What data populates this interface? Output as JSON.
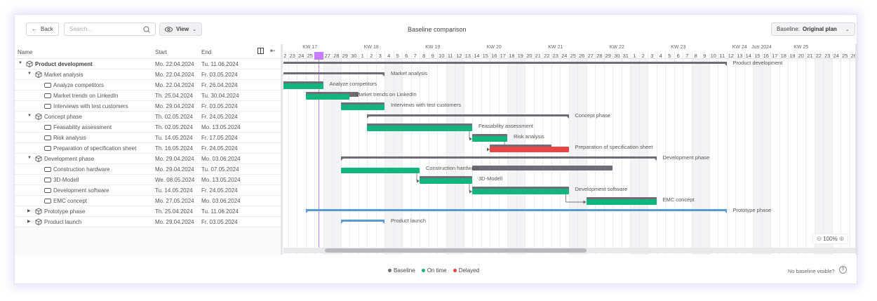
{
  "toolbar": {
    "back_label": "Back",
    "search_placeholder": "Search...",
    "view_label": "View",
    "title": "Baseline comparison",
    "baseline_label": "Baseline:",
    "baseline_value": "Original plan"
  },
  "table": {
    "headers": {
      "name": "Name",
      "start": "Start",
      "end": "End"
    }
  },
  "timeline": {
    "start_date": "2024-04-22",
    "today": "2024-04-26",
    "day_count": 67,
    "weeks": [
      {
        "label": "KW 17",
        "day": 3.5
      },
      {
        "label": "KW 18",
        "day": 10.5
      },
      {
        "label": "KW 19",
        "day": 17.5
      },
      {
        "label": "KW 20",
        "day": 24.5
      },
      {
        "label": "KW 21",
        "day": 31.5
      },
      {
        "label": "KW 22",
        "day": 38.5
      },
      {
        "label": "KW 23",
        "day": 45.5
      },
      {
        "label": "KW 24",
        "day": 52.5
      },
      {
        "label": "Jun 2024",
        "day": 55
      },
      {
        "label": "KW 25",
        "day": 59.5
      },
      {
        "label": "K",
        "day": 66.2
      }
    ]
  },
  "rows": [
    {
      "name": "Product development",
      "start": "Mo. 22.04.2024",
      "end": "Tu. 11.06.2024",
      "level": 0,
      "type": "summary",
      "expanded": true,
      "color": "gray",
      "actual": [
        "2024-04-22",
        "2024-06-11"
      ]
    },
    {
      "name": "Market analysis",
      "start": "Mo. 22.04.2024",
      "end": "Fr. 03.05.2024",
      "level": 1,
      "type": "summary",
      "expanded": true,
      "color": "gray",
      "actual": [
        "2024-04-22",
        "2024-05-03"
      ]
    },
    {
      "name": "Analyze competitors",
      "start": "Mo. 22.04.2024",
      "end": "Fr. 26.04.2024",
      "level": 2,
      "type": "task",
      "status": "on_time",
      "baseline": [
        "2024-04-22",
        "2024-04-26"
      ],
      "actual": [
        "2024-04-22",
        "2024-04-26"
      ]
    },
    {
      "name": "Market trends on LinkedIn",
      "start": "Th. 25.04.2024",
      "end": "Tu. 30.04.2024",
      "level": 2,
      "type": "task",
      "status": "on_time",
      "baseline": [
        "2024-04-25",
        "2024-04-30"
      ],
      "actual": [
        "2024-04-25",
        "2024-04-29"
      ]
    },
    {
      "name": "Interviews with test customers",
      "start": "Mo. 29.04.2024",
      "end": "Fr. 03.05.2024",
      "level": 2,
      "type": "task",
      "status": "on_time",
      "baseline": [
        "2024-04-29",
        "2024-05-03"
      ],
      "actual": [
        "2024-04-29",
        "2024-05-03"
      ]
    },
    {
      "name": "Concept phase",
      "start": "Th. 02.05.2024",
      "end": "Fr. 24.05.2024",
      "level": 1,
      "type": "summary",
      "expanded": true,
      "color": "gray",
      "actual": [
        "2024-05-02",
        "2024-05-24"
      ]
    },
    {
      "name": "Feasability assessment",
      "start": "Th. 02.05.2024",
      "end": "Mo. 13.05.2024",
      "level": 2,
      "type": "task",
      "status": "on_time",
      "baseline": [
        "2024-05-02",
        "2024-05-13"
      ],
      "actual": [
        "2024-05-02",
        "2024-05-13"
      ]
    },
    {
      "name": "Risk analysis",
      "start": "Tu. 14.05.2024",
      "end": "Fr. 17.05.2024",
      "level": 2,
      "type": "task",
      "status": "on_time",
      "baseline": [
        "2024-05-14",
        "2024-05-17"
      ],
      "actual": [
        "2024-05-14",
        "2024-05-17"
      ],
      "dep_from": 6
    },
    {
      "name": "Preparation of specification sheet",
      "start": "Th. 16.05.2024",
      "end": "Fr. 24.05.2024",
      "level": 2,
      "type": "task",
      "status": "delayed",
      "baseline": [
        "2024-05-16",
        "2024-05-22"
      ],
      "actual": [
        "2024-05-16",
        "2024-05-24"
      ],
      "dep_from": 7
    },
    {
      "name": "Development phase",
      "start": "Mo. 29.04.2024",
      "end": "Mo. 03.06.2024",
      "level": 1,
      "type": "summary",
      "expanded": true,
      "color": "gray",
      "actual": [
        "2024-04-29",
        "2024-06-03"
      ]
    },
    {
      "name": "Construction hardware",
      "start": "Mo. 29.04.2024",
      "end": "Tu. 07.05.2024",
      "level": 2,
      "type": "task",
      "status": "on_time",
      "baseline": [
        "2024-05-14",
        "2024-05-29"
      ],
      "actual": [
        "2024-04-29",
        "2024-05-07"
      ]
    },
    {
      "name": "3D-Modell",
      "start": "We. 08.05.2024",
      "end": "Mo. 13.05.2024",
      "level": 2,
      "type": "task",
      "status": "on_time",
      "baseline": [
        "2024-05-08",
        "2024-05-13"
      ],
      "actual": [
        "2024-05-08",
        "2024-05-13"
      ],
      "dep_from": 10
    },
    {
      "name": "Development software",
      "start": "Tu. 14.05.2024",
      "end": "Fr. 24.05.2024",
      "level": 2,
      "type": "task",
      "status": "on_time",
      "baseline": [
        "2024-05-14",
        "2024-05-24"
      ],
      "actual": [
        "2024-05-14",
        "2024-05-24"
      ],
      "dep_from": 11
    },
    {
      "name": "EMC concept",
      "start": "Mo. 27.05.2024",
      "end": "Mo. 03.06.2024",
      "level": 2,
      "type": "task",
      "status": "on_time",
      "baseline": [
        "2024-05-27",
        "2024-06-03"
      ],
      "actual": [
        "2024-05-27",
        "2024-06-03"
      ],
      "dep_from": 12
    },
    {
      "name": "Prototype phase",
      "start": "Th. 25.04.2024",
      "end": "Tu. 11.06.2024",
      "level": 1,
      "type": "summary",
      "expanded": false,
      "color": "blue",
      "actual": [
        "2024-04-25",
        "2024-06-11"
      ]
    },
    {
      "name": "Product launch",
      "start": "Mo. 29.04.2024",
      "end": "Fr. 03.05.2024",
      "level": 1,
      "type": "summary",
      "expanded": false,
      "color": "blue",
      "actual": [
        "2024-04-29",
        "2024-05-03"
      ]
    }
  ],
  "colors": {
    "baseline": "#6f6e76",
    "on_time": "#13b57f",
    "delayed": "#e84545",
    "blue": "#5b9bd5",
    "today": "#c77dff",
    "weekend": "#f3f3f6"
  },
  "zoom": {
    "value": "100%"
  },
  "legend": [
    {
      "label": "Baseline",
      "color": "#6f6e76"
    },
    {
      "label": "On time",
      "color": "#13b57f"
    },
    {
      "label": "Delayed",
      "color": "#e84545"
    }
  ],
  "footer": {
    "help_text": "No baseline visible?"
  }
}
